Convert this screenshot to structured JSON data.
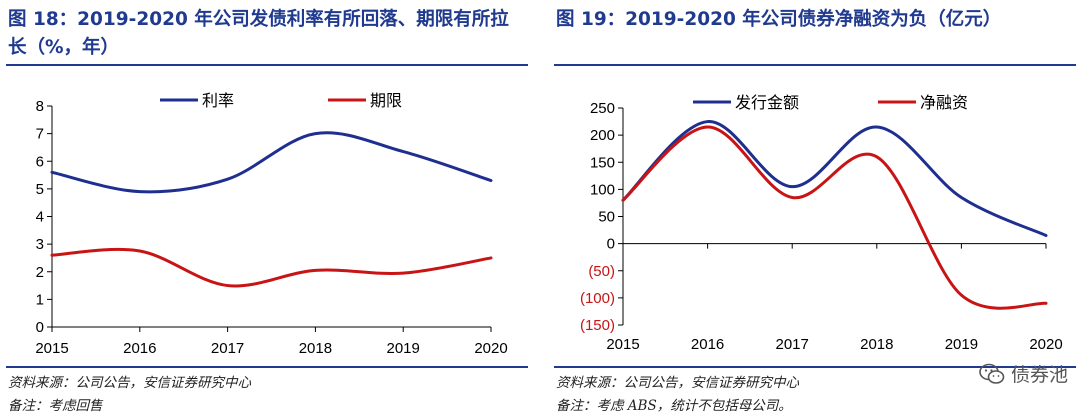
{
  "colors": {
    "blue": "#1f2f8f",
    "red": "#c81414",
    "title": "#1f3a8f"
  },
  "left": {
    "title": "图 18：2019-2020 年公司发债利率有所回落、期限有所拉长（%，年）",
    "source": "资料来源：公司公告，安信证券研究中心",
    "note": "备注：考虑回售"
  },
  "right": {
    "title": "图 19：2019-2020 年公司债券净融资为负（亿元）",
    "source": "资料来源：公司公告，安信证券研究中心",
    "note": "备注：考虑 ABS，统计不包括母公司。"
  },
  "watermark": {
    "text": "债券池",
    "icon": "wechat-icon"
  },
  "chart_data": [
    {
      "type": "line",
      "title": "图 18：2019-2020 年公司发债利率有所回落、期限有所拉长（%，年）",
      "categories": [
        "2015",
        "2016",
        "2017",
        "2018",
        "2019",
        "2020"
      ],
      "ylim": [
        0,
        8
      ],
      "yticks": [
        0,
        1,
        2,
        3,
        4,
        5,
        6,
        7,
        8
      ],
      "ytick_labels": [
        "0",
        "1",
        "2",
        "3",
        "4",
        "5",
        "6",
        "7",
        "8"
      ],
      "legend": "top",
      "series": [
        {
          "name": "利率",
          "color": "#1f2f8f",
          "values": [
            5.6,
            4.9,
            5.35,
            7.0,
            6.35,
            5.3
          ]
        },
        {
          "name": "期限",
          "color": "#c81414",
          "values": [
            2.6,
            2.75,
            1.5,
            2.05,
            1.95,
            2.5
          ]
        }
      ]
    },
    {
      "type": "line",
      "title": "图 19：2019-2020 年公司债券净融资为负（亿元）",
      "categories": [
        "2015",
        "2016",
        "2017",
        "2018",
        "2019",
        "2020"
      ],
      "ylim": [
        -150,
        250
      ],
      "yticks": [
        -150,
        -100,
        -50,
        0,
        50,
        100,
        150,
        200,
        250
      ],
      "ytick_labels": [
        "(150)",
        "(100)",
        "(50)",
        "0",
        "50",
        "100",
        "150",
        "200",
        "250"
      ],
      "negative_label_color": "#c81414",
      "legend": "top",
      "series": [
        {
          "name": "发行金额",
          "color": "#1f2f8f",
          "values": [
            80,
            225,
            105,
            215,
            85,
            15
          ]
        },
        {
          "name": "净融资",
          "color": "#c81414",
          "values": [
            80,
            215,
            85,
            160,
            -95,
            -110
          ]
        }
      ]
    }
  ]
}
